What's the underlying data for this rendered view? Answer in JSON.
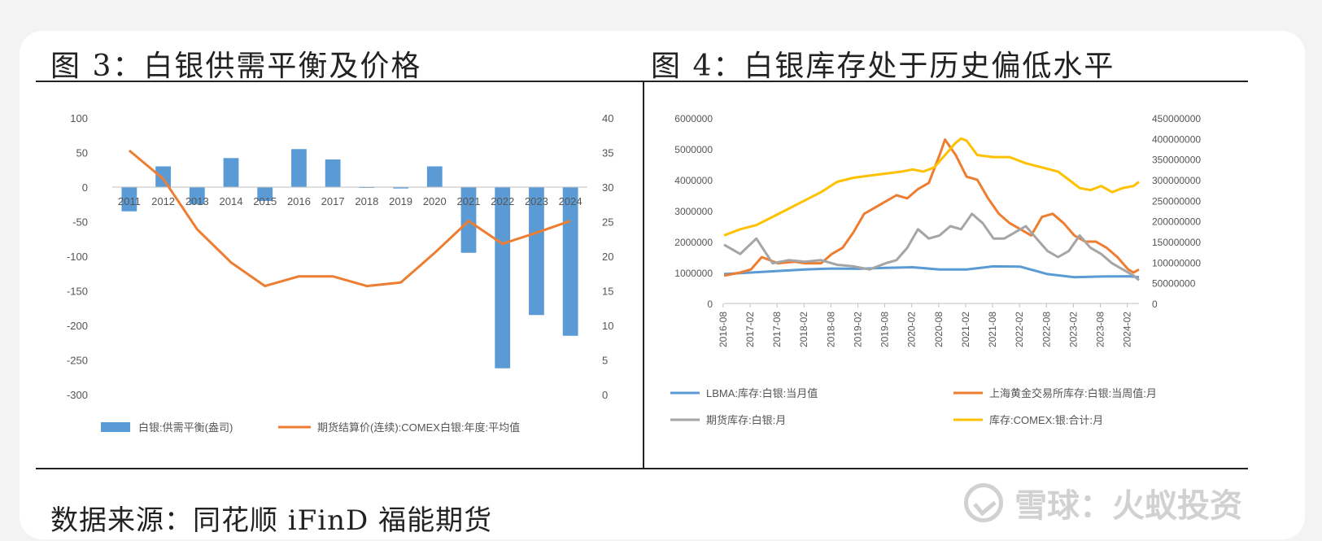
{
  "left_figure": {
    "title": "图 3：白银供需平衡及价格"
  },
  "right_figure": {
    "title": "图 4：白银库存处于历史偏低水平"
  },
  "footer": {
    "source": "数据来源：同花顺 iFinD 福能期货",
    "watermark": "雪球：火蚁投资"
  },
  "chart_data": [
    {
      "type": "bar",
      "categories": [
        "2011",
        "2012",
        "2013",
        "2014",
        "2015",
        "2016",
        "2017",
        "2018",
        "2019",
        "2020",
        "2021",
        "2022",
        "2023",
        "2024"
      ],
      "y_left_ticks": [
        100,
        50,
        0,
        -50,
        -100,
        -150,
        -200,
        -250,
        -300
      ],
      "y_right_ticks": [
        40,
        35,
        30,
        25,
        20,
        15,
        10,
        5,
        0
      ],
      "ylim_left": [
        -300,
        100
      ],
      "ylim_right": [
        0,
        40
      ],
      "series": [
        {
          "name": "白银:供需平衡(盎司)",
          "type": "bar",
          "axis": "left",
          "color": "#5b9bd5",
          "values": [
            -35,
            30,
            -25,
            42,
            -20,
            55,
            40,
            0,
            -2,
            30,
            -95,
            -262,
            -185,
            -215
          ]
        },
        {
          "name": "期货结算价(连续):COMEX白银:年度:平均值",
          "type": "line",
          "axis": "right",
          "color": "#ed7d31",
          "values": [
            35.3,
            31.2,
            23.9,
            19.1,
            15.7,
            17.1,
            17.1,
            15.7,
            16.2,
            20.5,
            25.1,
            21.8,
            23.4,
            25.1
          ]
        }
      ]
    },
    {
      "type": "line",
      "x_ticks": [
        "2016-08",
        "2017-02",
        "2017-08",
        "2018-02",
        "2018-08",
        "2019-02",
        "2019-08",
        "2020-02",
        "2020-08",
        "2021-02",
        "2021-08",
        "2022-02",
        "2022-08",
        "2023-02",
        "2023-08",
        "2024-02"
      ],
      "y_left_ticks": [
        6000000,
        5000000,
        4000000,
        3000000,
        2000000,
        1000000,
        0
      ],
      "y_right_ticks": [
        450000000,
        400000000,
        350000000,
        300000000,
        250000000,
        200000000,
        150000000,
        100000000,
        50000000,
        0
      ],
      "ylim_left": [
        0,
        6000000
      ],
      "ylim_right": [
        0,
        450000000
      ],
      "series": [
        {
          "name": "LBMA:库存:白银:当月值",
          "axis": "left",
          "color": "#5b9bd5",
          "x": [
            2016.6,
            2017.1,
            2017.6,
            2018.1,
            2018.6,
            2019.1,
            2019.6,
            2020.1,
            2020.6,
            2021.1,
            2021.6,
            2022.1,
            2022.6,
            2023.1,
            2023.6,
            2024.1,
            2024.3
          ],
          "y": [
            950000,
            1000000,
            1050000,
            1100000,
            1130000,
            1120000,
            1150000,
            1170000,
            1100000,
            1100000,
            1200000,
            1190000,
            950000,
            850000,
            870000,
            880000,
            850000
          ]
        },
        {
          "name": "上海黄金交易所库存:白银:当周值:月",
          "axis": "left",
          "color": "#ed7d31",
          "x": [
            2016.6,
            2016.9,
            2017.1,
            2017.3,
            2017.6,
            2017.9,
            2018.1,
            2018.4,
            2018.6,
            2018.8,
            2019.0,
            2019.2,
            2019.4,
            2019.6,
            2019.8,
            2020.0,
            2020.2,
            2020.4,
            2020.6,
            2020.7,
            2020.9,
            2021.1,
            2021.3,
            2021.5,
            2021.7,
            2021.9,
            2022.1,
            2022.3,
            2022.5,
            2022.7,
            2022.9,
            2023.1,
            2023.3,
            2023.5,
            2023.7,
            2023.9,
            2024.1,
            2024.2,
            2024.3
          ],
          "y": [
            900000,
            1000000,
            1100000,
            1500000,
            1300000,
            1350000,
            1300000,
            1300000,
            1600000,
            1800000,
            2300000,
            2900000,
            3100000,
            3300000,
            3500000,
            3400000,
            3700000,
            3900000,
            4800000,
            5300000,
            4800000,
            4100000,
            4000000,
            3400000,
            2900000,
            2600000,
            2400000,
            2200000,
            2800000,
            2900000,
            2600000,
            2200000,
            2000000,
            2000000,
            1800000,
            1500000,
            1100000,
            1000000,
            1100000
          ]
        },
        {
          "name": "期货库存:白银:月",
          "axis": "left",
          "color": "#a5a5a5",
          "x": [
            2016.6,
            2016.9,
            2017.2,
            2017.5,
            2017.8,
            2018.1,
            2018.4,
            2018.7,
            2019.0,
            2019.3,
            2019.6,
            2019.8,
            2020.0,
            2020.2,
            2020.4,
            2020.6,
            2020.8,
            2021.0,
            2021.2,
            2021.4,
            2021.6,
            2021.8,
            2022.0,
            2022.2,
            2022.4,
            2022.6,
            2022.8,
            2023.0,
            2023.2,
            2023.4,
            2023.6,
            2023.8,
            2024.0,
            2024.2,
            2024.3
          ],
          "y": [
            1900000,
            1600000,
            2100000,
            1300000,
            1400000,
            1350000,
            1400000,
            1250000,
            1200000,
            1100000,
            1300000,
            1400000,
            1800000,
            2400000,
            2100000,
            2200000,
            2500000,
            2400000,
            2900000,
            2600000,
            2100000,
            2100000,
            2300000,
            2500000,
            2100000,
            1700000,
            1500000,
            1700000,
            2200000,
            1800000,
            1600000,
            1300000,
            1100000,
            900000,
            750000
          ]
        },
        {
          "name": "库存:COMEX:银:合计:月",
          "axis": "right",
          "color": "#ffc000",
          "x": [
            2016.6,
            2016.9,
            2017.2,
            2017.5,
            2017.8,
            2018.1,
            2018.4,
            2018.7,
            2019.0,
            2019.3,
            2019.6,
            2019.9,
            2020.1,
            2020.3,
            2020.5,
            2020.7,
            2020.9,
            2021.0,
            2021.1,
            2021.3,
            2021.6,
            2021.9,
            2022.2,
            2022.5,
            2022.8,
            2023.0,
            2023.2,
            2023.4,
            2023.6,
            2023.8,
            2024.0,
            2024.2,
            2024.3
          ],
          "y": [
            165000000,
            180000000,
            190000000,
            210000000,
            230000000,
            250000000,
            270000000,
            295000000,
            305000000,
            310000000,
            315000000,
            320000000,
            325000000,
            320000000,
            330000000,
            360000000,
            390000000,
            400000000,
            395000000,
            360000000,
            355000000,
            355000000,
            340000000,
            330000000,
            320000000,
            300000000,
            280000000,
            275000000,
            285000000,
            270000000,
            280000000,
            285000000,
            295000000
          ]
        }
      ]
    }
  ]
}
